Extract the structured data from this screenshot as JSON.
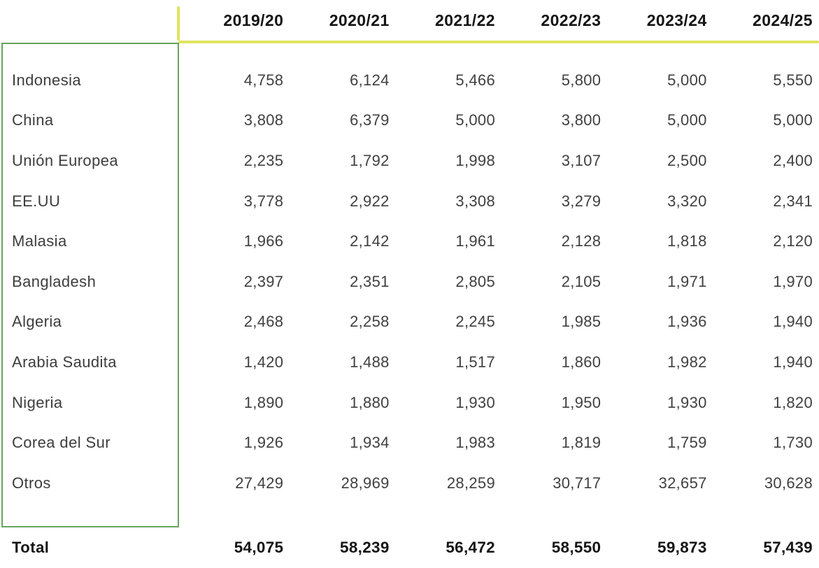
{
  "colors": {
    "accent_yellow": "#e0e45e",
    "accent_green": "#67a35c",
    "header_text": "#141414",
    "body_text": "#404040"
  },
  "chart_data": {
    "type": "table",
    "title": "",
    "categories": [
      "2019/20",
      "2020/21",
      "2021/22",
      "2022/23",
      "2023/24",
      "2024/25"
    ],
    "series": [
      {
        "name": "Indonesia",
        "values": [
          4758,
          6124,
          5466,
          5800,
          5000,
          5550
        ]
      },
      {
        "name": "China",
        "values": [
          3808,
          6379,
          5000,
          3800,
          5000,
          5000
        ]
      },
      {
        "name": "Unión Europea",
        "values": [
          2235,
          1792,
          1998,
          3107,
          2500,
          2400
        ]
      },
      {
        "name": "EE.UU",
        "values": [
          3778,
          2922,
          3308,
          3279,
          3320,
          2341
        ]
      },
      {
        "name": "Malasia",
        "values": [
          1966,
          2142,
          1961,
          2128,
          1818,
          2120
        ]
      },
      {
        "name": "Bangladesh",
        "values": [
          2397,
          2351,
          2805,
          2105,
          1971,
          1970
        ]
      },
      {
        "name": "Algeria",
        "values": [
          2468,
          2258,
          2245,
          1985,
          1936,
          1940
        ]
      },
      {
        "name": "Arabia Saudita",
        "values": [
          1420,
          1488,
          1517,
          1860,
          1982,
          1940
        ]
      },
      {
        "name": "Nigeria",
        "values": [
          1890,
          1880,
          1930,
          1950,
          1930,
          1820
        ]
      },
      {
        "name": "Corea del Sur",
        "values": [
          1926,
          1934,
          1983,
          1819,
          1759,
          1730
        ]
      },
      {
        "name": "Otros",
        "values": [
          27429,
          28969,
          28259,
          30717,
          32657,
          30628
        ]
      }
    ],
    "totals": {
      "name": "Total",
      "values": [
        54075,
        58239,
        56472,
        58550,
        59873,
        57439
      ]
    }
  },
  "table": {
    "columns": [
      "2019/20",
      "2020/21",
      "2021/22",
      "2022/23",
      "2023/24",
      "2024/25"
    ],
    "rows": [
      {
        "label": "Indonesia",
        "values": [
          "4,758",
          "6,124",
          "5,466",
          "5,800",
          "5,000",
          "5,550"
        ]
      },
      {
        "label": "China",
        "values": [
          "3,808",
          "6,379",
          "5,000",
          "3,800",
          "5,000",
          "5,000"
        ]
      },
      {
        "label": "Unión Europea",
        "values": [
          "2,235",
          "1,792",
          "1,998",
          "3,107",
          "2,500",
          "2,400"
        ]
      },
      {
        "label": "EE.UU",
        "values": [
          "3,778",
          "2,922",
          "3,308",
          "3,279",
          "3,320",
          "2,341"
        ]
      },
      {
        "label": "Malasia",
        "values": [
          "1,966",
          "2,142",
          "1,961",
          "2,128",
          "1,818",
          "2,120"
        ]
      },
      {
        "label": "Bangladesh",
        "values": [
          "2,397",
          "2,351",
          "2,805",
          "2,105",
          "1,971",
          "1,970"
        ]
      },
      {
        "label": "Algeria",
        "values": [
          "2,468",
          "2,258",
          "2,245",
          "1,985",
          "1,936",
          "1,940"
        ]
      },
      {
        "label": "Arabia Saudita",
        "values": [
          "1,420",
          "1,488",
          "1,517",
          "1,860",
          "1,982",
          "1,940"
        ]
      },
      {
        "label": "Nigeria",
        "values": [
          "1,890",
          "1,880",
          "1,930",
          "1,950",
          "1,930",
          "1,820"
        ]
      },
      {
        "label": "Corea del Sur",
        "values": [
          "1,926",
          "1,934",
          "1,983",
          "1,819",
          "1,759",
          "1,730"
        ]
      },
      {
        "label": "Otros",
        "values": [
          "27,429",
          "28,969",
          "28,259",
          "30,717",
          "32,657",
          "30,628"
        ]
      }
    ],
    "total": {
      "label": "Total",
      "values": [
        "54,075",
        "58,239",
        "56,472",
        "58,550",
        "59,873",
        "57,439"
      ]
    }
  }
}
